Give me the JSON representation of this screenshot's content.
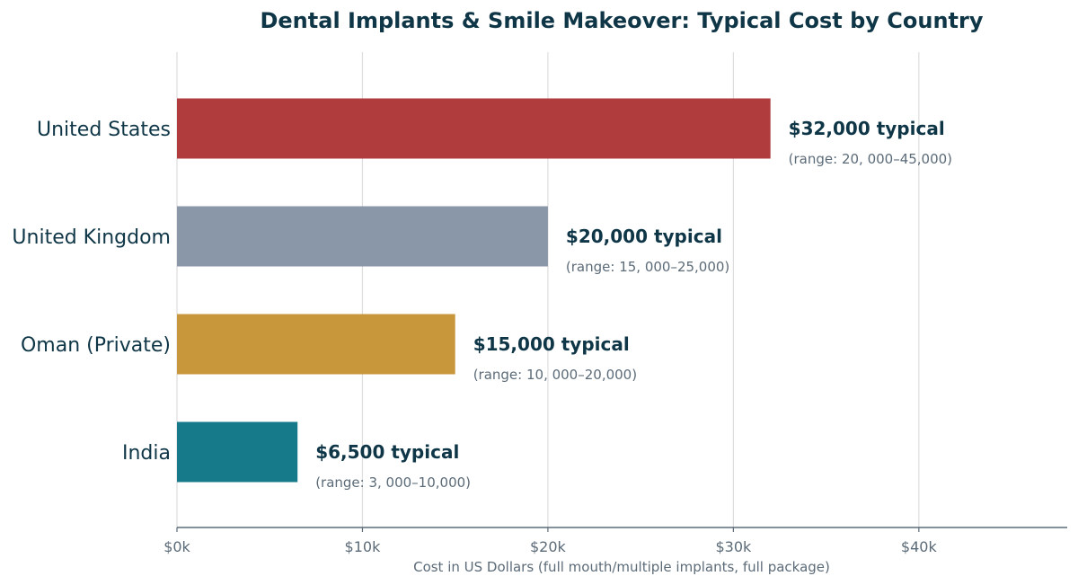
{
  "chart_data": {
    "type": "bar",
    "orientation": "horizontal",
    "title": "Dental Implants & Smile Makeover: Typical Cost by Country",
    "xlabel": "Cost in US Dollars (full mouth/multiple implants, full package)",
    "ylabel": "",
    "xlim": [
      0,
      48000
    ],
    "grid": true,
    "x_ticks": [
      {
        "value": 0,
        "label": "$0k"
      },
      {
        "value": 10000,
        "label": "$10k"
      },
      {
        "value": 20000,
        "label": "$20k"
      },
      {
        "value": 30000,
        "label": "$30k"
      },
      {
        "value": 40000,
        "label": "$40k"
      }
    ],
    "bars": [
      {
        "category": "United States",
        "value": 32000,
        "color": "#b03c3e",
        "typical_label": "$32,000 typical",
        "range_label": "(range: 20, 000–45,000)"
      },
      {
        "category": "United Kingdom",
        "value": 20000,
        "color": "#8a97a8",
        "typical_label": "$20,000 typical",
        "range_label": "(range: 15, 000–25,000)"
      },
      {
        "category": "Oman (Private)",
        "value": 15000,
        "color": "#c8963b",
        "typical_label": "$15,000 typical",
        "range_label": "(range: 10, 000–20,000)"
      },
      {
        "category": "India",
        "value": 6500,
        "color": "#167a8a",
        "typical_label": "$6,500 typical",
        "range_label": "(range: 3, 000–10,000)"
      }
    ]
  }
}
